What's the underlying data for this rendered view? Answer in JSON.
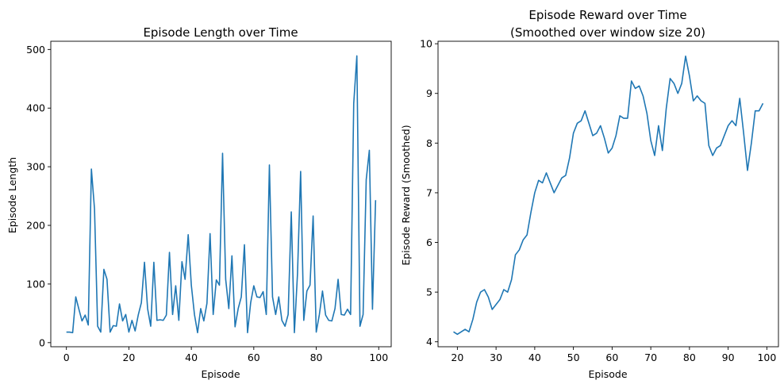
{
  "chart_data": [
    {
      "type": "line",
      "title": "Episode Length over Time",
      "subtitle": "",
      "xlabel": "Episode",
      "ylabel": "Episode Length",
      "xlim": [
        -5,
        104
      ],
      "ylim": [
        -7,
        514
      ],
      "xticks": [
        0,
        20,
        40,
        60,
        80,
        100
      ],
      "yticks": [
        0,
        100,
        200,
        300,
        400,
        500
      ],
      "grid": false,
      "color": "#1f77b4",
      "x": [
        0,
        1,
        2,
        3,
        4,
        5,
        6,
        7,
        8,
        9,
        10,
        11,
        12,
        13,
        14,
        15,
        16,
        17,
        18,
        19,
        20,
        21,
        22,
        23,
        24,
        25,
        26,
        27,
        28,
        29,
        30,
        31,
        32,
        33,
        34,
        35,
        36,
        37,
        38,
        39,
        40,
        41,
        42,
        43,
        44,
        45,
        46,
        47,
        48,
        49,
        50,
        51,
        52,
        53,
        54,
        55,
        56,
        57,
        58,
        59,
        60,
        61,
        62,
        63,
        64,
        65,
        66,
        67,
        68,
        69,
        70,
        71,
        72,
        73,
        74,
        75,
        76,
        77,
        78,
        79,
        80,
        81,
        82,
        83,
        84,
        85,
        86,
        87,
        88,
        89,
        90,
        91,
        92,
        93,
        94,
        95,
        96,
        97,
        98,
        99
      ],
      "values": [
        18,
        18,
        17,
        78,
        57,
        37,
        47,
        30,
        296,
        228,
        28,
        18,
        125,
        108,
        18,
        29,
        28,
        66,
        37,
        48,
        18,
        38,
        20,
        47,
        68,
        137,
        58,
        28,
        137,
        38,
        39,
        38,
        47,
        154,
        48,
        97,
        38,
        138,
        108,
        184,
        98,
        48,
        17,
        58,
        37,
        67,
        186,
        48,
        107,
        98,
        323,
        108,
        58,
        148,
        27,
        58,
        78,
        167,
        17,
        68,
        97,
        78,
        77,
        87,
        48,
        303,
        78,
        48,
        78,
        38,
        28,
        48,
        223,
        17,
        118,
        292,
        38,
        88,
        98,
        216,
        18,
        48,
        88,
        47,
        38,
        37,
        58,
        108,
        48,
        47,
        57,
        48,
        408,
        489,
        28,
        48,
        278,
        328,
        57,
        243
      ]
    },
    {
      "type": "line",
      "title": "Episode Reward over Time",
      "subtitle": "(Smoothed over window size 20)",
      "xlabel": "Episode",
      "ylabel": "Episode Reward (Smoothed)",
      "xlim": [
        15,
        103
      ],
      "ylim": [
        3.9,
        10.05
      ],
      "xticks": [
        20,
        30,
        40,
        50,
        60,
        70,
        80,
        90,
        100
      ],
      "yticks": [
        4,
        5,
        6,
        7,
        8,
        9,
        10
      ],
      "grid": false,
      "color": "#1f77b4",
      "x": [
        19,
        20,
        21,
        22,
        23,
        24,
        25,
        26,
        27,
        28,
        29,
        30,
        31,
        32,
        33,
        34,
        35,
        36,
        37,
        38,
        39,
        40,
        41,
        42,
        43,
        44,
        45,
        46,
        47,
        48,
        49,
        50,
        51,
        52,
        53,
        54,
        55,
        56,
        57,
        58,
        59,
        60,
        61,
        62,
        63,
        64,
        65,
        66,
        67,
        68,
        69,
        70,
        71,
        72,
        73,
        74,
        75,
        76,
        77,
        78,
        79,
        80,
        81,
        82,
        83,
        84,
        85,
        86,
        87,
        88,
        89,
        90,
        91,
        92,
        93,
        94,
        95,
        96,
        97,
        98,
        99
      ],
      "values": [
        4.2,
        4.15,
        4.2,
        4.25,
        4.2,
        4.45,
        4.8,
        5.0,
        5.05,
        4.9,
        4.65,
        4.75,
        4.85,
        5.05,
        5.0,
        5.25,
        5.75,
        5.85,
        6.05,
        6.15,
        6.6,
        7.0,
        7.25,
        7.2,
        7.4,
        7.2,
        7.0,
        7.15,
        7.3,
        7.35,
        7.7,
        8.2,
        8.4,
        8.45,
        8.65,
        8.4,
        8.15,
        8.2,
        8.35,
        8.1,
        7.8,
        7.9,
        8.15,
        8.55,
        8.5,
        8.5,
        9.25,
        9.1,
        9.15,
        8.95,
        8.6,
        8.05,
        7.75,
        8.35,
        7.85,
        8.7,
        9.3,
        9.2,
        9.0,
        9.2,
        9.75,
        9.35,
        8.85,
        8.95,
        8.85,
        8.8,
        7.95,
        7.75,
        7.9,
        7.95,
        8.15,
        8.35,
        8.45,
        8.35,
        8.9,
        8.2,
        7.45,
        8.0,
        8.65,
        8.65,
        8.8
      ]
    }
  ]
}
